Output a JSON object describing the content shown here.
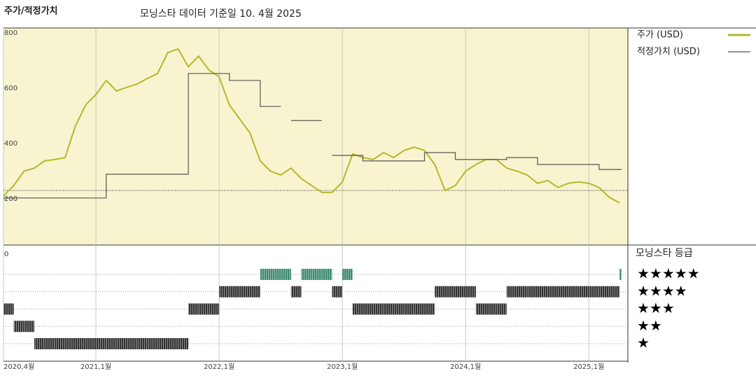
{
  "chart_data": {
    "type": "line",
    "title": "주가/적정가치",
    "subtitle": "모닝스타 데이터 기준일 10. 4월 2025",
    "x": [
      "2020-04",
      "2020-05",
      "2020-06",
      "2020-07",
      "2020-08",
      "2020-09",
      "2020-10",
      "2020-11",
      "2020-12",
      "2021-01",
      "2021-02",
      "2021-03",
      "2021-04",
      "2021-05",
      "2021-06",
      "2021-07",
      "2021-08",
      "2021-09",
      "2021-10",
      "2021-11",
      "2021-12",
      "2022-01",
      "2022-02",
      "2022-03",
      "2022-04",
      "2022-05",
      "2022-06",
      "2022-07",
      "2022-08",
      "2022-09",
      "2022-10",
      "2022-11",
      "2022-12",
      "2023-01",
      "2023-02",
      "2023-03",
      "2023-04",
      "2023-05",
      "2023-06",
      "2023-07",
      "2023-08",
      "2023-09",
      "2023-10",
      "2023-11",
      "2023-12",
      "2024-01",
      "2024-02",
      "2024-03",
      "2024-04",
      "2024-05",
      "2024-06",
      "2024-07",
      "2024-08",
      "2024-09",
      "2024-10",
      "2024-11",
      "2024-12",
      "2025-01",
      "2025-02",
      "2025-03",
      "2025-04"
    ],
    "xticks": [
      {
        "value": "2020-04",
        "label": "2020,4월"
      },
      {
        "value": "2021-01",
        "label": "2021,1월"
      },
      {
        "value": "2022-01",
        "label": "2022,1월"
      },
      {
        "value": "2023-01",
        "label": "2023,1월"
      },
      {
        "value": "2024-01",
        "label": "2024,1월"
      },
      {
        "value": "2025-01",
        "label": "2025,1월"
      }
    ],
    "ylim": [
      0,
      818
    ],
    "yticks": [
      0,
      200,
      400,
      600,
      800
    ],
    "ref_line": 230,
    "series": [
      {
        "name": "주가 (USD)",
        "color": "#b5b82a",
        "style": "line",
        "values": [
          210,
          248,
          300,
          311,
          337,
          342,
          349,
          463,
          539,
          577,
          628,
          590,
          603,
          615,
          635,
          653,
          729,
          742,
          678,
          716,
          666,
          641,
          539,
          489,
          438,
          337,
          300,
          286,
          311,
          273,
          248,
          223,
          223,
          261,
          362,
          349,
          342,
          367,
          349,
          375,
          387,
          375,
          324,
          230,
          248,
          300,
          324,
          342,
          342,
          311,
          300,
          286,
          256,
          266,
          241,
          256,
          261,
          256,
          241,
          205,
          185
        ]
      },
      {
        "name": "적정가치 (USD)",
        "color": "#555555",
        "style": "step",
        "values": [
          203,
          203,
          203,
          203,
          203,
          203,
          203,
          203,
          203,
          203,
          289,
          289,
          289,
          289,
          289,
          289,
          289,
          289,
          653,
          653,
          653,
          653,
          628,
          628,
          628,
          534,
          534,
          null,
          483,
          483,
          483,
          null,
          357,
          357,
          357,
          337,
          337,
          337,
          337,
          337,
          337,
          367,
          367,
          367,
          342,
          342,
          342,
          342,
          342,
          349,
          349,
          349,
          324,
          324,
          324,
          324,
          324,
          324,
          306,
          306,
          306
        ]
      }
    ],
    "ratings": {
      "title": "모닝스타 등급",
      "levels": [
        {
          "value": 5,
          "label": "★★★★★"
        },
        {
          "value": 4,
          "label": "★★★★"
        },
        {
          "value": 3,
          "label": "★★★"
        },
        {
          "value": 2,
          "label": "★★"
        },
        {
          "value": 1,
          "label": "★"
        }
      ],
      "colors": {
        "5": "#3e8a72",
        "other": "#333333"
      },
      "values": [
        3,
        2,
        2,
        1,
        1,
        1,
        1,
        1,
        1,
        1,
        1,
        1,
        1,
        1,
        1,
        1,
        1,
        1,
        3,
        3,
        3,
        4,
        4,
        4,
        4,
        5,
        5,
        5,
        4,
        5,
        5,
        5,
        4,
        5,
        3,
        3,
        3,
        3,
        3,
        3,
        3,
        3,
        4,
        4,
        4,
        4,
        3,
        3,
        3,
        4,
        4,
        4,
        4,
        4,
        4,
        4,
        4,
        4,
        4,
        4,
        5
      ]
    }
  }
}
